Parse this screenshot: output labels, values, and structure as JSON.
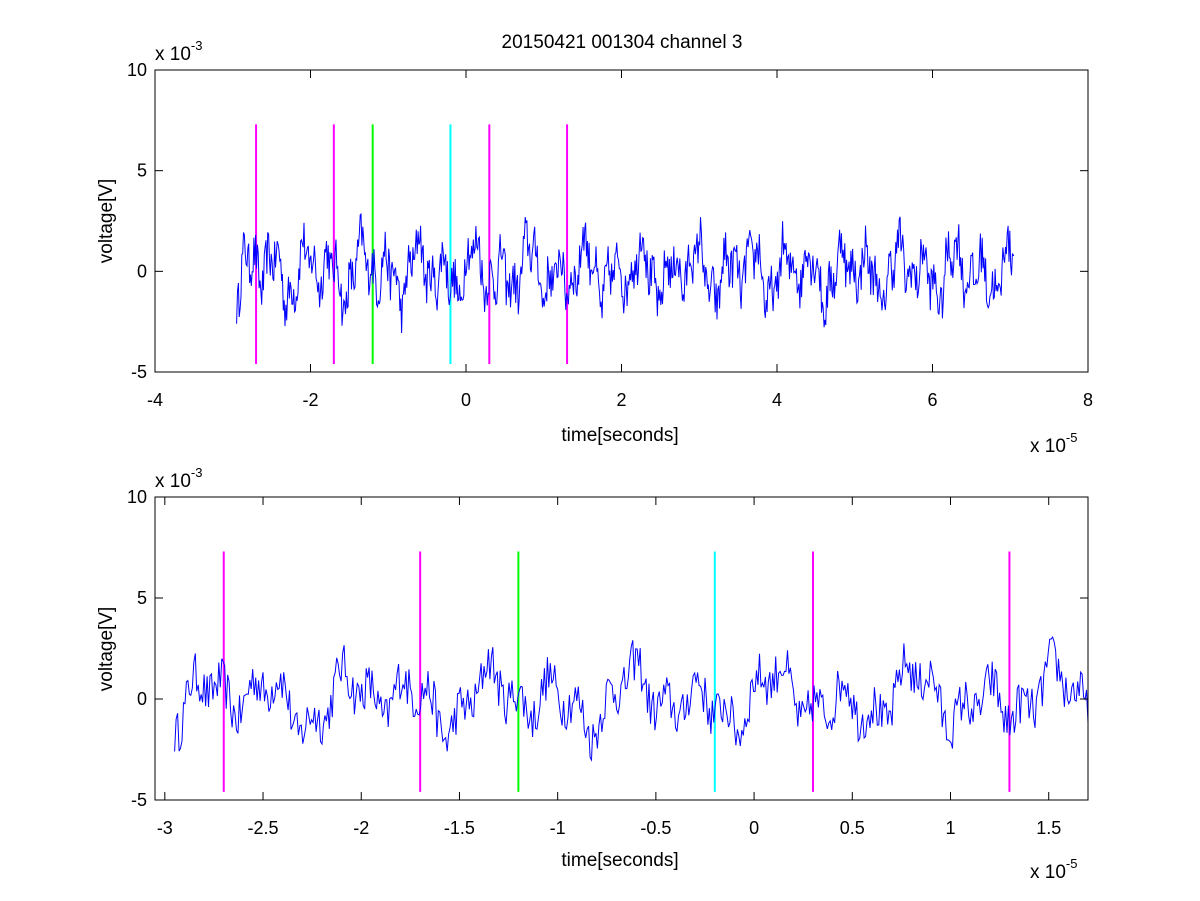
{
  "chart_data": {
    "title": "20150421 001304 channel 3",
    "trace_color": "#0000ff",
    "plots": [
      {
        "type": "line",
        "xlabel": "time[seconds]",
        "ylabel": "voltage[V]",
        "x_multiplier_label": "x 10",
        "x_multiplier_exp": "-5",
        "y_multiplier_label": "x 10",
        "y_multiplier_exp": "-3",
        "xlim": [
          -4,
          8
        ],
        "ylim": [
          -5,
          10
        ],
        "xticks": [
          -4,
          -2,
          0,
          2,
          4,
          6,
          8
        ],
        "xtick_labels": [
          "-4",
          "-2",
          "0",
          "2",
          "4",
          "6",
          "8"
        ],
        "yticks": [
          -5,
          0,
          5,
          10
        ],
        "ytick_labels": [
          "-5",
          "0",
          "5",
          "10"
        ],
        "signal_x_range": [
          -2.95,
          7.05
        ],
        "markers": [
          {
            "x": -2.7,
            "y_range": [
              -4.6,
              7.3
            ],
            "color": "#ff00ff"
          },
          {
            "x": -1.7,
            "y_range": [
              -4.6,
              7.3
            ],
            "color": "#ff00ff"
          },
          {
            "x": -1.2,
            "y_range": [
              -4.6,
              7.3
            ],
            "color": "#00ff00"
          },
          {
            "x": -0.2,
            "y_range": [
              -4.6,
              7.3
            ],
            "color": "#00ffff"
          },
          {
            "x": 0.3,
            "y_range": [
              -4.6,
              7.3
            ],
            "color": "#ff00ff"
          },
          {
            "x": 1.3,
            "y_range": [
              -4.6,
              7.3
            ],
            "color": "#ff00ff"
          }
        ]
      },
      {
        "type": "line",
        "xlabel": "time[seconds]",
        "ylabel": "voltage[V]",
        "x_multiplier_label": "x 10",
        "x_multiplier_exp": "-5",
        "y_multiplier_label": "x 10",
        "y_multiplier_exp": "-3",
        "xlim": [
          -3.05,
          1.7
        ],
        "ylim": [
          -5,
          10
        ],
        "xticks": [
          -3,
          -2.5,
          -2,
          -1.5,
          -1,
          -0.5,
          0,
          0.5,
          1,
          1.5
        ],
        "xtick_labels": [
          "-3",
          "-2.5",
          "-2",
          "-1.5",
          "-1",
          "-0.5",
          "0",
          "0.5",
          "1",
          "1.5"
        ],
        "yticks": [
          -5,
          0,
          5,
          10
        ],
        "ytick_labels": [
          "-5",
          "0",
          "5",
          "10"
        ],
        "signal_x_range": [
          -2.95,
          1.7
        ],
        "markers": [
          {
            "x": -2.7,
            "y_range": [
              -4.6,
              7.3
            ],
            "color": "#ff00ff"
          },
          {
            "x": -1.7,
            "y_range": [
              -4.6,
              7.3
            ],
            "color": "#ff00ff"
          },
          {
            "x": -1.2,
            "y_range": [
              -4.6,
              7.3
            ],
            "color": "#00ff00"
          },
          {
            "x": -0.2,
            "y_range": [
              -4.6,
              7.3
            ],
            "color": "#00ffff"
          },
          {
            "x": 0.3,
            "y_range": [
              -4.6,
              7.3
            ],
            "color": "#ff00ff"
          },
          {
            "x": 1.3,
            "y_range": [
              -4.6,
              7.3
            ],
            "color": "#ff00ff"
          }
        ]
      }
    ]
  }
}
